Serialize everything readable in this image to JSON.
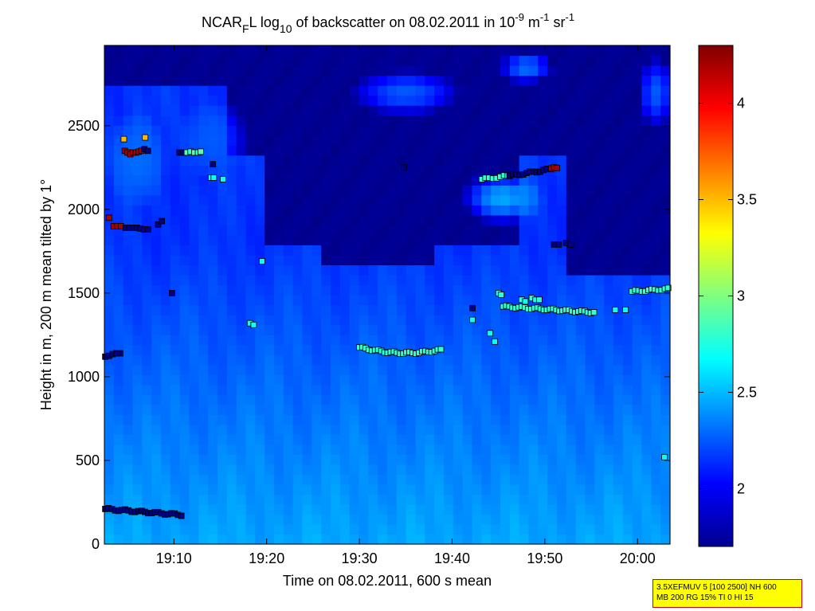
{
  "chart_data": {
    "type": "heatmap",
    "title_parts": {
      "name": "NCAR",
      "name_sub": "F",
      "after_name": "L log",
      "log_sub": "10",
      "mid": " of backscatter on 08.02.2011 in 10",
      "exp": "-9",
      "unit1": " m",
      "unit1_exp": "-1",
      "unit2": " sr",
      "unit2_exp": "-1"
    },
    "xlabel": "Time on 08.02.2011, 600 s mean",
    "ylabel": "Height in m, 200 m mean tilted by 1°",
    "x_range_min": [
      1142.5,
      1203.5
    ],
    "y_range_m": [
      0,
      2980
    ],
    "x_ticks": [
      {
        "min": 1150,
        "label": "19:10"
      },
      {
        "min": 1160,
        "label": "19:20"
      },
      {
        "min": 1170,
        "label": "19:30"
      },
      {
        "min": 1180,
        "label": "19:40"
      },
      {
        "min": 1190,
        "label": "19:50"
      },
      {
        "min": 1200,
        "label": "20:00"
      }
    ],
    "y_ticks": [
      {
        "v": 0,
        "label": "0"
      },
      {
        "v": 500,
        "label": "500"
      },
      {
        "v": 1000,
        "label": "1000"
      },
      {
        "v": 1500,
        "label": "1500"
      },
      {
        "v": 2000,
        "label": "2000"
      },
      {
        "v": 2500,
        "label": "2500"
      }
    ],
    "colorbar": {
      "range": [
        1.7,
        4.3
      ],
      "ticks": [
        {
          "v": 2,
          "label": "2"
        },
        {
          "v": 2.5,
          "label": "2.5"
        },
        {
          "v": 3,
          "label": "3"
        },
        {
          "v": 3.5,
          "label": "3.5"
        },
        {
          "v": 4,
          "label": "4"
        }
      ]
    },
    "background": {
      "description_levels": "log10 backscatter field, higher near ground, lower aloft",
      "ground_value": 2.45,
      "aloft_value": 2.15,
      "clear_value": 1.72,
      "clear_regions": [
        {
          "x0": 1143,
          "x1": 1157,
          "y0": 2750,
          "y1": 2980
        },
        {
          "x0": 1156,
          "x1": 1203.5,
          "y0": 2300,
          "y1": 2980
        },
        {
          "x0": 1160,
          "x1": 1187,
          "y0": 1800,
          "y1": 2300
        },
        {
          "x0": 1192,
          "x1": 1203.5,
          "y0": 1600,
          "y1": 2300
        },
        {
          "x0": 1166,
          "x1": 1178,
          "y0": 1650,
          "y1": 1850
        }
      ],
      "cloud_patches": [
        {
          "cx": 1146,
          "cy": 2300,
          "rx": 3.5,
          "ry": 300,
          "v": 2.3
        },
        {
          "cx": 1154,
          "cy": 2420,
          "rx": 4,
          "ry": 250,
          "v": 2.25
        },
        {
          "cx": 1185.5,
          "cy": 2070,
          "rx": 4.5,
          "ry": 160,
          "v": 2.45
        },
        {
          "cx": 1175,
          "cy": 2700,
          "rx": 6,
          "ry": 140,
          "v": 2.25
        },
        {
          "cx": 1188,
          "cy": 2850,
          "rx": 3,
          "ry": 100,
          "v": 2.3
        },
        {
          "cx": 1202,
          "cy": 2700,
          "rx": 2,
          "ry": 220,
          "v": 2.25
        }
      ]
    },
    "markers": [
      {
        "t": 1143.0,
        "h": 1950,
        "v": 4.2
      },
      {
        "t": 1143.5,
        "h": 1900,
        "v": 4.2
      },
      {
        "t": 1143.9,
        "h": 1900,
        "v": 4.2
      },
      {
        "t": 1144.3,
        "h": 1900,
        "v": 4.2
      },
      {
        "t": 1144.8,
        "h": 1890,
        "v": 1.7
      },
      {
        "t": 1145.2,
        "h": 1890,
        "v": 1.7
      },
      {
        "t": 1145.6,
        "h": 1890,
        "v": 1.7
      },
      {
        "t": 1146.0,
        "h": 1890,
        "v": 1.7
      },
      {
        "t": 1146.4,
        "h": 1885,
        "v": 1.7
      },
      {
        "t": 1146.8,
        "h": 1880,
        "v": 1.7
      },
      {
        "t": 1147.2,
        "h": 1880,
        "v": 1.7
      },
      {
        "t": 1148.3,
        "h": 1910,
        "v": 1.7
      },
      {
        "t": 1148.7,
        "h": 1930,
        "v": 1.7
      },
      {
        "t": 1149.8,
        "h": 1500,
        "v": 1.7
      },
      {
        "t": 1144.6,
        "h": 2420,
        "v": 3.5
      },
      {
        "t": 1146.9,
        "h": 2430,
        "v": 3.5
      },
      {
        "t": 1144.7,
        "h": 2350,
        "v": 4.2
      },
      {
        "t": 1145.0,
        "h": 2340,
        "v": 4.2
      },
      {
        "t": 1145.3,
        "h": 2330,
        "v": 4.2
      },
      {
        "t": 1145.6,
        "h": 2340,
        "v": 4.2
      },
      {
        "t": 1145.9,
        "h": 2340,
        "v": 4.2
      },
      {
        "t": 1146.2,
        "h": 2345,
        "v": 4.2
      },
      {
        "t": 1146.5,
        "h": 2350,
        "v": 4.2
      },
      {
        "t": 1146.8,
        "h": 2360,
        "v": 1.7
      },
      {
        "t": 1147.2,
        "h": 2350,
        "v": 1.7
      },
      {
        "t": 1150.6,
        "h": 2340,
        "v": 1.7
      },
      {
        "t": 1151.0,
        "h": 2340,
        "v": 1.7
      },
      {
        "t": 1151.4,
        "h": 2340,
        "v": 2.9
      },
      {
        "t": 1151.8,
        "h": 2345,
        "v": 2.8
      },
      {
        "t": 1152.2,
        "h": 2340,
        "v": 2.9
      },
      {
        "t": 1152.6,
        "h": 2340,
        "v": 2.8
      },
      {
        "t": 1152.9,
        "h": 2345,
        "v": 2.9
      },
      {
        "t": 1154.2,
        "h": 2270,
        "v": 1.7
      },
      {
        "t": 1154.0,
        "h": 2190,
        "v": 2.7
      },
      {
        "t": 1154.3,
        "h": 2190,
        "v": 2.7
      },
      {
        "t": 1155.3,
        "h": 2180,
        "v": 2.7
      },
      {
        "t": 1159.5,
        "h": 1690,
        "v": 2.7
      },
      {
        "t": 1158.2,
        "h": 1320,
        "v": 2.7
      },
      {
        "t": 1158.6,
        "h": 1310,
        "v": 2.7
      },
      {
        "t": 1142.6,
        "h": 1120,
        "v": 1.7
      },
      {
        "t": 1143.0,
        "h": 1125,
        "v": 1.7
      },
      {
        "t": 1143.4,
        "h": 1135,
        "v": 1.7
      },
      {
        "t": 1143.8,
        "h": 1140,
        "v": 1.7
      },
      {
        "t": 1144.2,
        "h": 1140,
        "v": 1.7
      },
      {
        "t": 1174.8,
        "h": 2250,
        "v": 1.7
      },
      {
        "t": 1182.2,
        "h": 1410,
        "v": 1.7
      },
      {
        "t": 1182.2,
        "h": 1340,
        "v": 2.7
      },
      {
        "t": 1184.1,
        "h": 1260,
        "v": 2.7
      },
      {
        "t": 1184.6,
        "h": 1210,
        "v": 2.7
      },
      {
        "t": 1197.6,
        "h": 1400,
        "v": 2.7
      },
      {
        "t": 1198.7,
        "h": 1400,
        "v": 2.7
      },
      {
        "t": 1202.9,
        "h": 520,
        "v": 2.7
      },
      {
        "t": 1191.0,
        "h": 1790,
        "v": 1.7
      },
      {
        "t": 1191.5,
        "h": 1790,
        "v": 1.7
      },
      {
        "t": 1192.3,
        "h": 1800,
        "v": 1.7
      },
      {
        "t": 1192.8,
        "h": 1790,
        "v": 1.7
      },
      {
        "t": 1185.0,
        "h": 1500,
        "v": 2.7
      },
      {
        "t": 1185.3,
        "h": 1490,
        "v": 2.8
      },
      {
        "t": 1187.5,
        "h": 1460,
        "v": 2.8
      },
      {
        "t": 1187.9,
        "h": 1450,
        "v": 2.7
      },
      {
        "t": 1188.6,
        "h": 1470,
        "v": 2.8
      },
      {
        "t": 1189.0,
        "h": 1460,
        "v": 2.7
      },
      {
        "t": 1189.4,
        "h": 1460,
        "v": 2.8
      }
    ],
    "marker_chains": [
      {
        "t0": 1142.6,
        "t1": 1150.8,
        "h0": 210,
        "h1": 175,
        "n": 24,
        "v": 1.7
      },
      {
        "t0": 1170.0,
        "t1": 1178.8,
        "h0": 1175,
        "h1": 1160,
        "n": 27,
        "v": 2.8,
        "dip": 25
      },
      {
        "t0": 1185.5,
        "t1": 1195.3,
        "h0": 1420,
        "h1": 1385,
        "n": 30,
        "v": 2.8
      },
      {
        "t0": 1183.2,
        "t1": 1186.0,
        "h0": 2180,
        "h1": 2200,
        "n": 8,
        "v": 2.8
      },
      {
        "t0": 1186.2,
        "t1": 1190.6,
        "h0": 2200,
        "h1": 2240,
        "n": 13,
        "v": 1.7
      },
      {
        "t0": 1190.7,
        "t1": 1191.3,
        "h0": 2245,
        "h1": 2245,
        "n": 3,
        "v": 4.2
      },
      {
        "t0": 1199.4,
        "t1": 1203.3,
        "h0": 1510,
        "h1": 1525,
        "n": 12,
        "v": 2.8
      }
    ],
    "info_box_lines": [
      "3.5XEFMUV 5 [100 2500] NH 600",
      "MB 200 RG 15% TI 0 HI 15"
    ]
  }
}
